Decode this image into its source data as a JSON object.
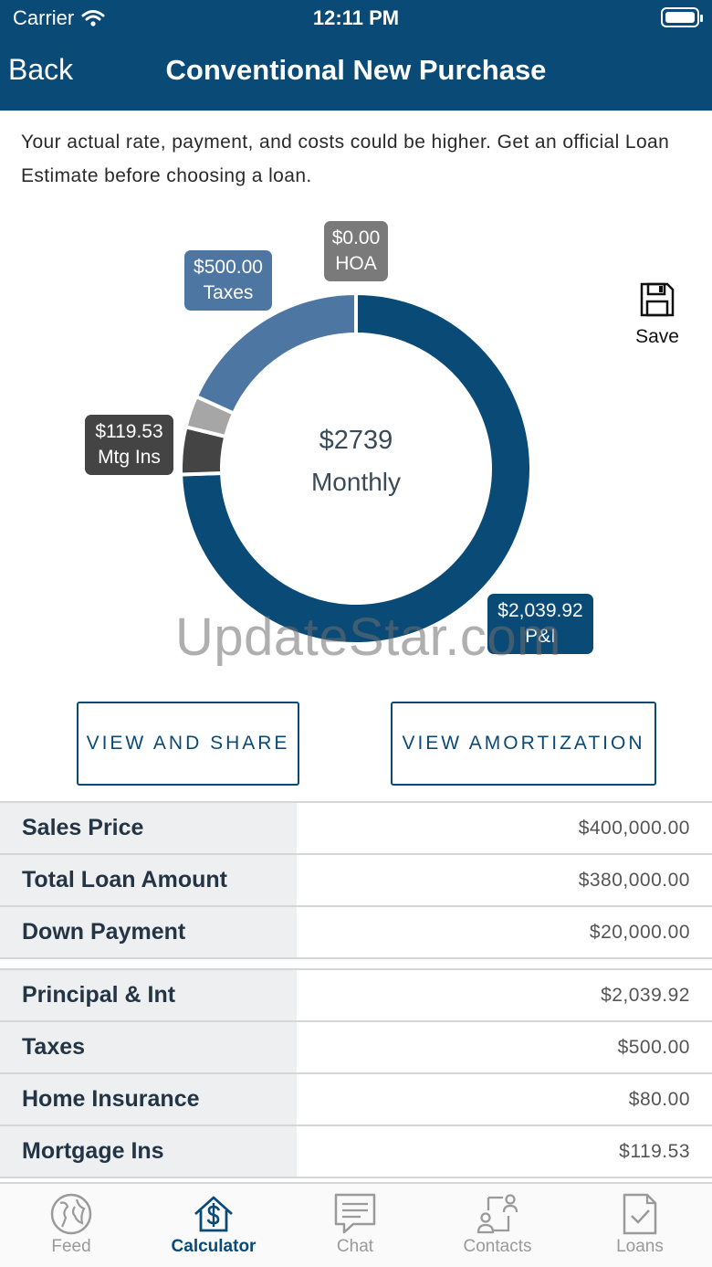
{
  "status_bar": {
    "carrier": "Carrier",
    "time": "12:11 PM"
  },
  "nav": {
    "back_label": "Back",
    "title": "Conventional New Purchase"
  },
  "disclaimer": "Your actual rate, payment, and costs could be higher. Get an official Loan Estimate before choosing a loan.",
  "chart": {
    "center_amount": "$2739",
    "center_label": "Monthly",
    "callouts": {
      "hoa": {
        "amount": "$0.00",
        "label": "HOA"
      },
      "taxes": {
        "amount": "$500.00",
        "label": "Taxes"
      },
      "mtg_ins": {
        "amount": "$119.53",
        "label": "Mtg Ins"
      },
      "pi": {
        "amount": "$2,039.92",
        "label": "P&I"
      }
    }
  },
  "chart_data": {
    "type": "pie",
    "categories": [
      "P&I",
      "Mtg Ins",
      "Home Insurance",
      "Taxes",
      "HOA"
    ],
    "values": [
      2039.92,
      119.53,
      80.0,
      500.0,
      0.0
    ],
    "colors": [
      "#0a4a77",
      "#444444",
      "#a6a6a6",
      "#4e76a3",
      "#7a7a7a"
    ]
  },
  "save_label": "Save",
  "watermark": "UpdateStar.com",
  "buttons": {
    "view_share": "VIEW AND SHARE",
    "view_amortization": "VIEW AMORTIZATION"
  },
  "loan_table": [
    {
      "label": "Sales Price",
      "value": "$400,000.00"
    },
    {
      "label": "Total Loan Amount",
      "value": "$380,000.00"
    },
    {
      "label": "Down Payment",
      "value": "$20,000.00"
    }
  ],
  "payment_table": [
    {
      "label": "Principal & Int",
      "value": "$2,039.92"
    },
    {
      "label": "Taxes",
      "value": "$500.00"
    },
    {
      "label": "Home Insurance",
      "value": "$80.00"
    },
    {
      "label": "Mortgage Ins",
      "value": "$119.53"
    }
  ],
  "tabs": [
    {
      "label": "Feed",
      "icon": "globe-icon"
    },
    {
      "label": "Calculator",
      "icon": "house-dollar-icon"
    },
    {
      "label": "Chat",
      "icon": "chat-icon"
    },
    {
      "label": "Contacts",
      "icon": "contacts-icon"
    },
    {
      "label": "Loans",
      "icon": "document-check-icon"
    }
  ],
  "active_tab": "Calculator"
}
